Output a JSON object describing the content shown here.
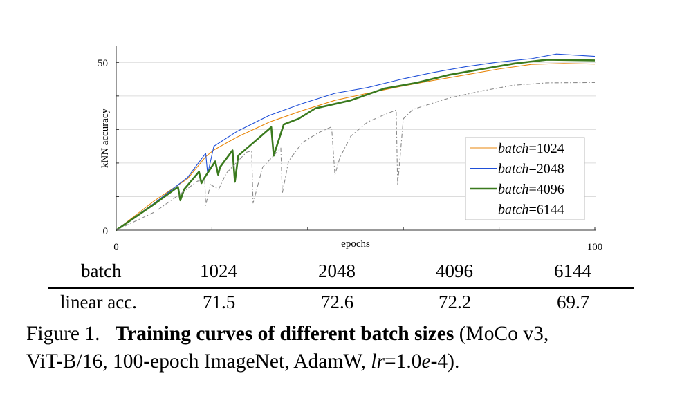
{
  "chart_data": {
    "type": "line",
    "xlabel": "epochs",
    "ylabel": "kNN accuracy",
    "xlim": [
      0,
      100
    ],
    "ylim": [
      0,
      55
    ],
    "x_tick_labels": [
      "0",
      "100"
    ],
    "x_ticks": [
      0,
      20,
      40,
      60,
      80,
      100
    ],
    "y_tick_labels": [
      "0",
      "50"
    ],
    "y_gridlines": [
      10,
      20,
      30,
      40,
      50
    ],
    "grid": true,
    "legend_placement": "right",
    "legend_prefix": "batch",
    "series": [
      {
        "name": "1024",
        "color": "#e8870c",
        "style": "solid-thin",
        "points": [
          [
            0,
            0
          ],
          [
            8,
            8.8
          ],
          [
            14.9,
            15.3
          ],
          [
            18.7,
            21.9
          ],
          [
            20.4,
            23.9
          ],
          [
            25.2,
            27.7
          ],
          [
            32,
            32.2
          ],
          [
            38.8,
            35.6
          ],
          [
            45.7,
            38.7
          ],
          [
            52.5,
            40.8
          ],
          [
            59.3,
            42.8
          ],
          [
            66.2,
            44.6
          ],
          [
            73,
            46.3
          ],
          [
            79.8,
            48
          ],
          [
            86.7,
            49.4
          ],
          [
            93.5,
            49.7
          ],
          [
            100,
            49.5
          ]
        ]
      },
      {
        "name": "2048",
        "color": "#1f4fd8",
        "style": "solid-thin",
        "points": [
          [
            0,
            0
          ],
          [
            8,
            8.1
          ],
          [
            14.9,
            15.7
          ],
          [
            18.7,
            22.9
          ],
          [
            19.1,
            16.7
          ],
          [
            20.4,
            25
          ],
          [
            25.2,
            29.4
          ],
          [
            32,
            34.2
          ],
          [
            38.8,
            37.7
          ],
          [
            45.7,
            40.8
          ],
          [
            52.5,
            42.5
          ],
          [
            59.3,
            44.9
          ],
          [
            66.2,
            47
          ],
          [
            73,
            48.7
          ],
          [
            79.8,
            50.1
          ],
          [
            86.7,
            51.1
          ],
          [
            92,
            52.5
          ],
          [
            100,
            51.8
          ]
        ]
      },
      {
        "name": "4096",
        "color": "#3a7a1e",
        "style": "solid-thick",
        "points": [
          [
            0,
            0
          ],
          [
            8,
            7.8
          ],
          [
            12.9,
            12.9
          ],
          [
            13.4,
            8.9
          ],
          [
            14.2,
            12.2
          ],
          [
            17.3,
            17.4
          ],
          [
            17.8,
            14
          ],
          [
            18.3,
            15.3
          ],
          [
            20.7,
            20.5
          ],
          [
            21.3,
            16.5
          ],
          [
            21.7,
            18.8
          ],
          [
            24.3,
            23.8
          ],
          [
            24.8,
            14.4
          ],
          [
            25.5,
            22.2
          ],
          [
            28.6,
            26
          ],
          [
            32.4,
            30.7
          ],
          [
            32.9,
            22.2
          ],
          [
            35,
            31.5
          ],
          [
            38.1,
            33.2
          ],
          [
            41.6,
            36.3
          ],
          [
            49,
            38.7
          ],
          [
            56,
            42.2
          ],
          [
            62.7,
            43.9
          ],
          [
            69.6,
            46.3
          ],
          [
            76.4,
            48
          ],
          [
            83.3,
            49.7
          ],
          [
            90,
            50.8
          ],
          [
            100,
            50.6
          ]
        ]
      },
      {
        "name": "6144",
        "color": "#8a8a8a",
        "style": "dash-dot",
        "points": [
          [
            0,
            0
          ],
          [
            8,
            5.4
          ],
          [
            13.5,
            10.9
          ],
          [
            17,
            14.6
          ],
          [
            18.5,
            15
          ],
          [
            18.7,
            7.4
          ],
          [
            19.7,
            13.6
          ],
          [
            21.4,
            12.2
          ],
          [
            23,
            17
          ],
          [
            27.2,
            23.2
          ],
          [
            28.3,
            23.6
          ],
          [
            28.6,
            8.1
          ],
          [
            30.6,
            18.8
          ],
          [
            32.7,
            21.9
          ],
          [
            34.4,
            24.5
          ],
          [
            34.7,
            10.9
          ],
          [
            36,
            20.5
          ],
          [
            38.8,
            26
          ],
          [
            42.2,
            29
          ],
          [
            45,
            30.8
          ],
          [
            45.7,
            16.5
          ],
          [
            46.7,
            21.5
          ],
          [
            49,
            28
          ],
          [
            52.5,
            32.2
          ],
          [
            56,
            34.4
          ],
          [
            58.5,
            35.8
          ],
          [
            58.8,
            13.3
          ],
          [
            60,
            33.2
          ],
          [
            62,
            36
          ],
          [
            69.6,
            39.4
          ],
          [
            76.4,
            41.5
          ],
          [
            83,
            43.2
          ],
          [
            90,
            43.9
          ],
          [
            100,
            44
          ]
        ]
      }
    ]
  },
  "table": {
    "header": {
      "label": "batch",
      "values": [
        "1024",
        "2048",
        "4096",
        "6144"
      ]
    },
    "row": {
      "label": "linear acc.",
      "values": [
        "71.5",
        "72.6",
        "72.2",
        "69.7"
      ]
    }
  },
  "caption": {
    "prefix": "Figure 1.",
    "bold": "Training curves of different batch sizes",
    "rest_line1": " (MoCo v3,",
    "line2_a": "ViT-B/16, 100-epoch ImageNet, AdamW, ",
    "line2_lr": "lr",
    "line2_b": "=1.0",
    "line2_e": "e",
    "line2_c": "-4)."
  }
}
